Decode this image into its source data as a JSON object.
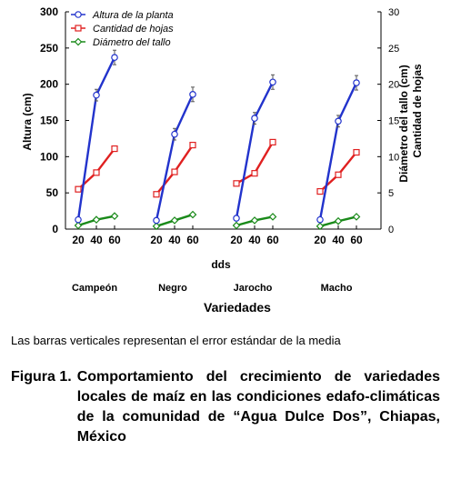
{
  "chart_data": {
    "type": "line",
    "panels": [
      "Campeón",
      "Negro",
      "Jarocho",
      "Macho"
    ],
    "x": [
      20,
      40,
      60
    ],
    "series": [
      {
        "name": "Altura de la planta",
        "axis": "left",
        "color": "#2233cc",
        "marker": "circle",
        "values": [
          [
            13,
            185,
            237
          ],
          [
            12,
            131,
            186
          ],
          [
            15,
            153,
            203
          ],
          [
            13,
            149,
            202
          ]
        ],
        "errors": [
          [
            3,
            8,
            10
          ],
          [
            3,
            8,
            10
          ],
          [
            3,
            8,
            10
          ],
          [
            3,
            8,
            10
          ]
        ]
      },
      {
        "name": "Cantidad de hojas",
        "axis": "right",
        "color": "#e02020",
        "marker": "square",
        "values": [
          [
            5.5,
            7.8,
            11.1
          ],
          [
            4.8,
            7.9,
            11.6
          ],
          [
            6.3,
            7.7,
            12.0
          ],
          [
            5.2,
            7.5,
            10.6
          ]
        ]
      },
      {
        "name": "Diámetro del tallo",
        "axis": "right",
        "color": "#1a8a1a",
        "marker": "diamond",
        "values": [
          [
            0.5,
            1.3,
            1.8
          ],
          [
            0.4,
            1.2,
            2.0
          ],
          [
            0.5,
            1.2,
            1.7
          ],
          [
            0.4,
            1.1,
            1.7
          ]
        ]
      }
    ],
    "ylim_left": [
      0,
      300
    ],
    "ylim_right": [
      0,
      30
    ],
    "yticks_left": [
      "0",
      "50",
      "100",
      "150",
      "200",
      "250",
      "300"
    ],
    "yticks_right": [
      "0",
      "5",
      "10",
      "15",
      "20",
      "25",
      "30"
    ],
    "xticks": [
      "20",
      "40",
      "60"
    ],
    "ylabel_left": "Altura (cm)",
    "ylabel_right_1": "Diámetro del tallo (cm)",
    "ylabel_right_2": "Cantidad de hojas",
    "xlabel": "dds",
    "group_label": "Variedades",
    "legend_position": "top-left"
  },
  "note": "Las barras verticales representan el error estándar de la media",
  "caption": {
    "label": "Figura 1.",
    "text": "Comportamiento del crecimiento de variedades locales de maíz en las condiciones edafo-climáticas de la comunidad de “Agua Dulce Dos”, Chiapas, México"
  }
}
